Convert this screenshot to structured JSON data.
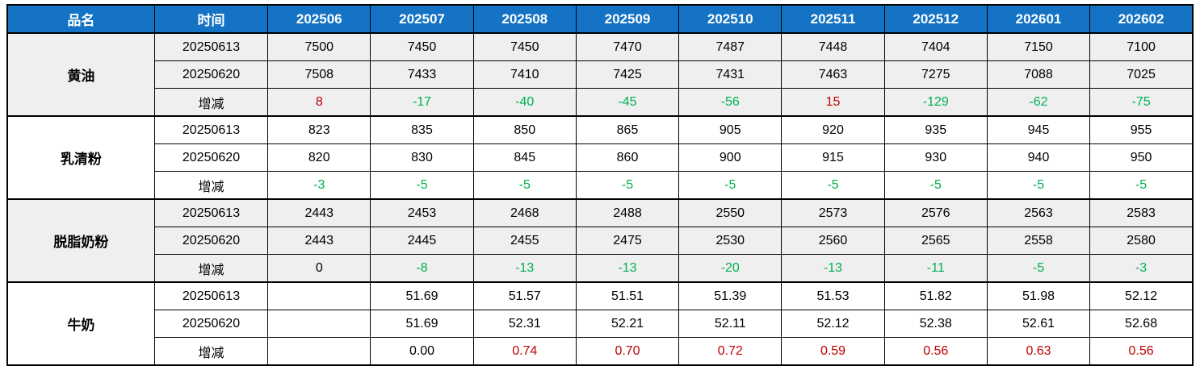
{
  "table": {
    "header": {
      "product_label": "品名",
      "time_label": "时间",
      "months": [
        "202506",
        "202507",
        "202508",
        "202509",
        "202510",
        "202511",
        "202512",
        "202601",
        "202602"
      ]
    },
    "colors": {
      "header_bg": "#1473c4",
      "header_text": "#ffffff",
      "positive_change": "#c00000",
      "negative_change": "#00b050",
      "shaded_row_bg": "#efefef"
    },
    "groups": [
      {
        "name": "黄油",
        "shaded": true,
        "rows": [
          {
            "label": "20250613",
            "type": "price",
            "values": [
              "7500",
              "7450",
              "7450",
              "7470",
              "7487",
              "7448",
              "7404",
              "7150",
              "7100"
            ]
          },
          {
            "label": "20250620",
            "type": "price",
            "values": [
              "7508",
              "7433",
              "7410",
              "7425",
              "7431",
              "7463",
              "7275",
              "7088",
              "7025"
            ]
          },
          {
            "label": "增减",
            "type": "change",
            "values": [
              "8",
              "-17",
              "-40",
              "-45",
              "-56",
              "15",
              "-129",
              "-62",
              "-75"
            ]
          }
        ]
      },
      {
        "name": "乳清粉",
        "shaded": false,
        "rows": [
          {
            "label": "20250613",
            "type": "price",
            "values": [
              "823",
              "835",
              "850",
              "865",
              "905",
              "920",
              "935",
              "945",
              "955"
            ]
          },
          {
            "label": "20250620",
            "type": "price",
            "values": [
              "820",
              "830",
              "845",
              "860",
              "900",
              "915",
              "930",
              "940",
              "950"
            ]
          },
          {
            "label": "增减",
            "type": "change",
            "values": [
              "-3",
              "-5",
              "-5",
              "-5",
              "-5",
              "-5",
              "-5",
              "-5",
              "-5"
            ]
          }
        ]
      },
      {
        "name": "脱脂奶粉",
        "shaded": true,
        "rows": [
          {
            "label": "20250613",
            "type": "price",
            "values": [
              "2443",
              "2453",
              "2468",
              "2488",
              "2550",
              "2573",
              "2576",
              "2563",
              "2583"
            ]
          },
          {
            "label": "20250620",
            "type": "price",
            "values": [
              "2443",
              "2445",
              "2455",
              "2475",
              "2530",
              "2560",
              "2565",
              "2558",
              "2580"
            ]
          },
          {
            "label": "增减",
            "type": "change",
            "values": [
              "0",
              "-8",
              "-13",
              "-13",
              "-20",
              "-13",
              "-11",
              "-5",
              "-3"
            ]
          }
        ]
      },
      {
        "name": "牛奶",
        "shaded": false,
        "rows": [
          {
            "label": "20250613",
            "type": "price",
            "values": [
              "",
              "51.69",
              "51.57",
              "51.51",
              "51.39",
              "51.53",
              "51.82",
              "51.98",
              "52.12"
            ]
          },
          {
            "label": "20250620",
            "type": "price",
            "values": [
              "",
              "51.69",
              "52.31",
              "52.21",
              "52.11",
              "52.12",
              "52.38",
              "52.61",
              "52.68"
            ]
          },
          {
            "label": "增减",
            "type": "change",
            "values": [
              "",
              "0.00",
              "0.74",
              "0.70",
              "0.72",
              "0.59",
              "0.56",
              "0.63",
              "0.56"
            ]
          }
        ]
      }
    ]
  }
}
